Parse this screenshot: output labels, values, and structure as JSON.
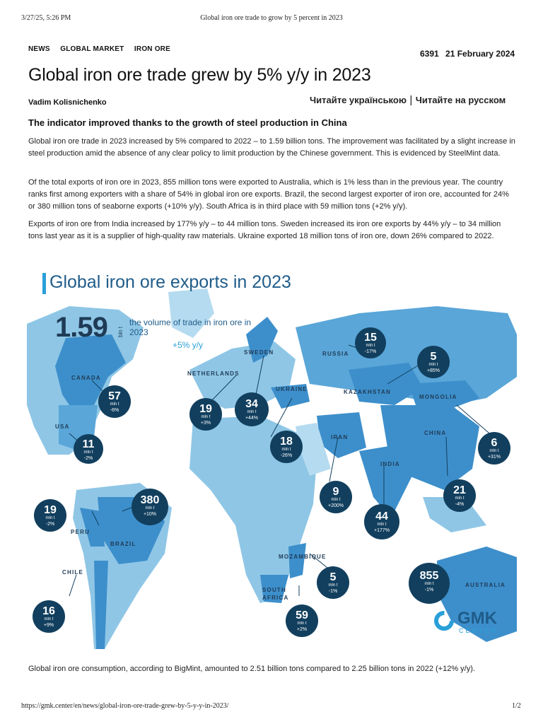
{
  "print_header": {
    "datetime": "3/27/25, 5:26 PM",
    "doc_title": "Global iron ore trade to grow by 5 percent in 2023"
  },
  "nav": [
    "NEWS",
    "GLOBAL MARKET",
    "IRON ORE"
  ],
  "meta": {
    "views": "6391",
    "date": "21 February 2024"
  },
  "article": {
    "title": "Global iron ore trade grew by 5% y/y in 2023",
    "author": "Vadim Kolisnichenko",
    "lang_ua": "Читайте українською",
    "lang_sep": "|",
    "lang_ru": "Читайте на русском",
    "lead": "The indicator improved thanks to the growth of steel production in China",
    "p1": "Global iron ore trade in 2023 increased by 5% compared to 2022 – to 1.59 billion tons. The improvement was facilitated by a slight increase in steel production amid the absence of any clear policy to limit production by the Chinese government. This is evidenced by SteelMint data.",
    "p2": "Of the total exports of iron ore in 2023, 855 million tons were exported to Australia, which is 1% less than in the previous year. The country ranks first among exporters with a share of 54% in global iron ore exports. Brazil, the second largest exporter of iron ore, accounted for 24% or 380 million tons of seaborne exports (+10% y/y). South Africa is in third place with 59 million tons (+2% y/y).",
    "p3": "Exports of iron ore from India increased by 177% y/y – to 44 million tons. Sweden increased its iron ore exports by 44% y/y – to 34 million tons last year as it is a supplier of high-quality raw materials. Ukraine exported 18 million tons of iron ore, down 26% compared to 2022.",
    "p4": "Global iron ore consumption, according to BigMint, amounted to 2.51 billion tons compared to 2.25 billion tons in 2022 (+12% y/y)."
  },
  "infographic": {
    "title": "Global iron ore exports in 2023",
    "total_value": "1.59",
    "total_unit": "bln t",
    "total_desc": "the volume of trade in iron ore in 2023",
    "total_change": "+5%",
    "total_change_suffix": "y/y",
    "unit": "mln t",
    "logo_text": "GMK",
    "logo_sub": "CENTER",
    "countries": [
      {
        "name": "CANADA",
        "value": "57",
        "change": "-6%"
      },
      {
        "name": "USA",
        "value": "11",
        "change": "-2%"
      },
      {
        "name": "NETHERLANDS",
        "value": "19",
        "change": "+3%"
      },
      {
        "name": "SWEDEN",
        "value": "34",
        "change": "+44%"
      },
      {
        "name": "RUSSIA",
        "value": "15",
        "change": "-17%"
      },
      {
        "name": "KAZAKHSTAN",
        "value": "5",
        "change": "+85%"
      },
      {
        "name": "UKRAINE",
        "value": "18",
        "change": "-26%"
      },
      {
        "name": "MONGOLIA",
        "value": "6",
        "change": "+31%"
      },
      {
        "name": "IRAN",
        "value": "9",
        "change": "+200%"
      },
      {
        "name": "CHINA",
        "value": "21",
        "change": "-4%"
      },
      {
        "name": "INDIA",
        "value": "44",
        "change": "+177%"
      },
      {
        "name": "PERU",
        "value": "19",
        "change": "-2%"
      },
      {
        "name": "BRAZIL",
        "value": "380",
        "change": "+10%"
      },
      {
        "name": "CHILE",
        "value": "16",
        "change": "+9%"
      },
      {
        "name": "MOZAMBIQUE",
        "value": "5",
        "change": "-1%"
      },
      {
        "name": "SOUTH AFRICA",
        "value": "59",
        "change": "+2%"
      },
      {
        "name": "AUSTRALIA",
        "value": "855",
        "change": "-1%"
      }
    ]
  },
  "print_footer": {
    "url": "https://gmk.center/en/news/global-iron-ore-trade-grew-by-5-y-y-in-2023/",
    "page": "1/2"
  },
  "colors": {
    "navy": "#123f5e",
    "accent": "#2aa0d8",
    "land": "#8fc6e6",
    "land_dark": "#3d8fcb",
    "ocean": "#ffffff"
  }
}
